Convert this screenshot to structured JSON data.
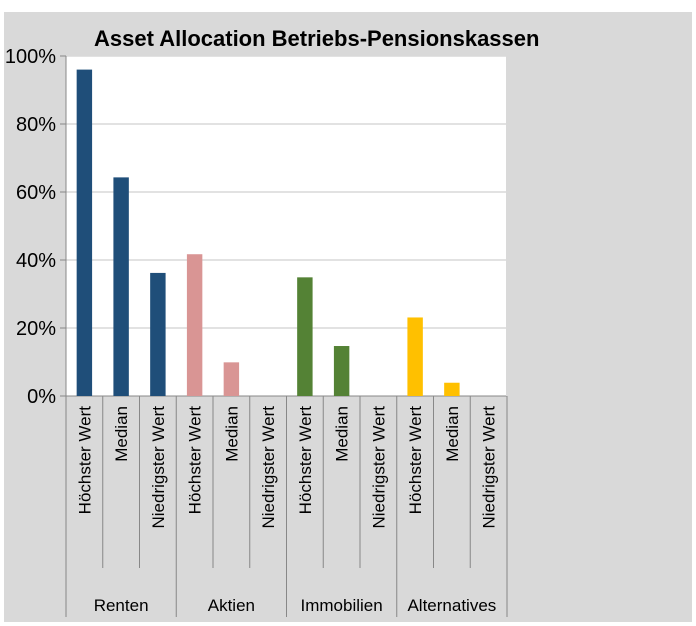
{
  "chart_data": {
    "type": "bar",
    "title": "Asset Allocation Betriebs-Pensionskassen",
    "xlabel": "",
    "ylabel": "",
    "ylim": [
      0,
      100
    ],
    "yticks": [
      "0%",
      "20%",
      "40%",
      "60%",
      "80%",
      "100%"
    ],
    "grid": true,
    "legend": "none",
    "groups": [
      {
        "name": "Renten",
        "color": "#1F4E79"
      },
      {
        "name": "Aktien",
        "color": "#D99594"
      },
      {
        "name": "Immobilien",
        "color": "#548235"
      },
      {
        "name": "Alternatives",
        "color": "#FFC000"
      }
    ],
    "subcategories": [
      "Höchster Wert",
      "Median",
      "Niedrigster Wert"
    ],
    "values": [
      [
        96,
        64.3,
        36.2
      ],
      [
        41.7,
        9.9,
        0
      ],
      [
        34.9,
        14.7,
        0
      ],
      [
        23.1,
        3.9,
        0
      ]
    ]
  }
}
